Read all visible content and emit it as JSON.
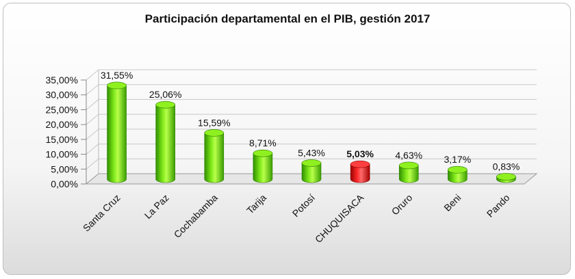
{
  "chart_data": {
    "type": "bar",
    "title": "Participación departamental en el PIB, gestión 2017",
    "xlabel": "",
    "ylabel": "",
    "ylim": [
      0,
      35
    ],
    "yticks": [
      "0,00%",
      "5,00%",
      "10,00%",
      "15,00%",
      "20,00%",
      "25,00%",
      "30,00%",
      "35,00%"
    ],
    "categories": [
      "Santa Cruz",
      "La Paz",
      "Cochabamba",
      "Tarija",
      "Potosí",
      "CHUQUISACA",
      "Oruro",
      "Beni",
      "Pando"
    ],
    "values": [
      31.55,
      25.06,
      15.59,
      8.71,
      5.43,
      5.03,
      4.63,
      3.17,
      0.83
    ],
    "labels": [
      "31,55%",
      "25,06%",
      "15,59%",
      "8,71%",
      "5,43%",
      "5,03%",
      "4,63%",
      "3,17%",
      "0,83%"
    ],
    "highlight_index": 5,
    "colors": {
      "default": "#66dd00",
      "highlight": "#ee0000",
      "grid": "#c8c8c8"
    },
    "grid": true,
    "legend": "none"
  }
}
